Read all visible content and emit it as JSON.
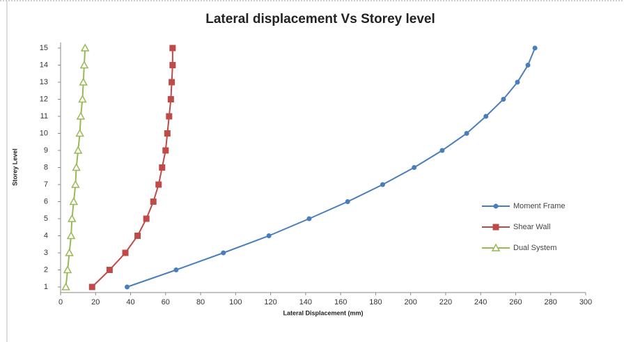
{
  "chart_data": {
    "type": "line",
    "title": "Lateral displacement Vs Storey level",
    "xlabel": "Lateral Displacement (mm)",
    "ylabel": "Storey Level",
    "y": [
      1,
      2,
      3,
      4,
      5,
      6,
      7,
      8,
      9,
      10,
      11,
      12,
      13,
      14,
      15
    ],
    "series": [
      {
        "name": "Moment Frame",
        "color": "#4a7ebb",
        "marker": "circle",
        "values": [
          38,
          66,
          93,
          119,
          142,
          164,
          184,
          202,
          218,
          232,
          243,
          253,
          261,
          267,
          271
        ]
      },
      {
        "name": "Shear Wall",
        "color": "#be4b48",
        "marker": "square",
        "values": [
          18,
          28,
          37,
          44,
          49,
          53,
          56,
          58,
          60,
          61,
          62,
          63,
          63.5,
          64,
          64
        ]
      },
      {
        "name": "Dual System",
        "color": "#98b954",
        "marker": "triangle",
        "values": [
          3,
          4,
          5,
          6,
          6.5,
          7.5,
          8.5,
          9,
          10,
          11,
          11.5,
          12.5,
          13,
          13.5,
          14
        ]
      }
    ],
    "xlim": [
      0,
      300
    ],
    "xticks": [
      0,
      20,
      40,
      60,
      80,
      100,
      120,
      140,
      160,
      180,
      200,
      220,
      240,
      260,
      280,
      300
    ],
    "ylim": [
      1,
      15
    ],
    "yticks": [
      1,
      2,
      3,
      4,
      5,
      6,
      7,
      8,
      9,
      10,
      11,
      12,
      13,
      14,
      15
    ],
    "grid": false,
    "legend": "right"
  }
}
